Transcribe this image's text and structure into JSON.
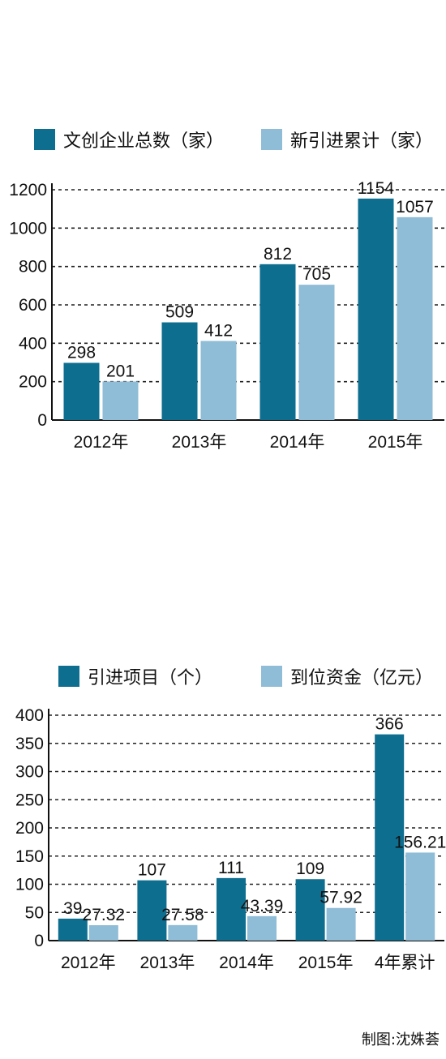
{
  "chart_data": [
    {
      "type": "bar",
      "title": "",
      "categories": [
        "2012年",
        "2013年",
        "2014年",
        "2015年"
      ],
      "series": [
        {
          "name": "文创企业总数（家）",
          "values": [
            298,
            509,
            812,
            1154
          ],
          "color": "#0e6e8f"
        },
        {
          "name": "新引进累计（家）",
          "values": [
            201,
            412,
            705,
            1057
          ],
          "color": "#8fbcd6"
        }
      ],
      "yticks": [
        "0",
        "200",
        "400",
        "600",
        "800",
        "1000",
        "1200"
      ],
      "data_labels": [
        [
          "298",
          "509",
          "812",
          "1154"
        ],
        [
          "201",
          "412",
          "705",
          "1057"
        ]
      ],
      "ylim": [
        0,
        1200
      ],
      "grid": true,
      "legend": "top"
    },
    {
      "type": "bar",
      "title": "",
      "categories": [
        "2012年",
        "2013年",
        "2014年",
        "2015年",
        "4年累计"
      ],
      "series": [
        {
          "name": "引进项目（个）",
          "values": [
            39,
            107,
            111,
            109,
            366
          ],
          "color": "#0e6e8f"
        },
        {
          "name": "到位资金（亿元）",
          "values": [
            27.32,
            27.58,
            43.39,
            57.92,
            156.21
          ],
          "color": "#8fbcd6"
        }
      ],
      "yticks": [
        "0",
        "50",
        "100",
        "150",
        "200",
        "250",
        "300",
        "350",
        "400"
      ],
      "data_labels": [
        [
          "39",
          "107",
          "111",
          "109",
          "366"
        ],
        [
          "27.32",
          "27.58",
          "43.39",
          "57.92",
          "156.21"
        ]
      ],
      "ylim": [
        0,
        400
      ],
      "grid": true,
      "legend": "top"
    }
  ],
  "credit": "制图:沈姝荟"
}
